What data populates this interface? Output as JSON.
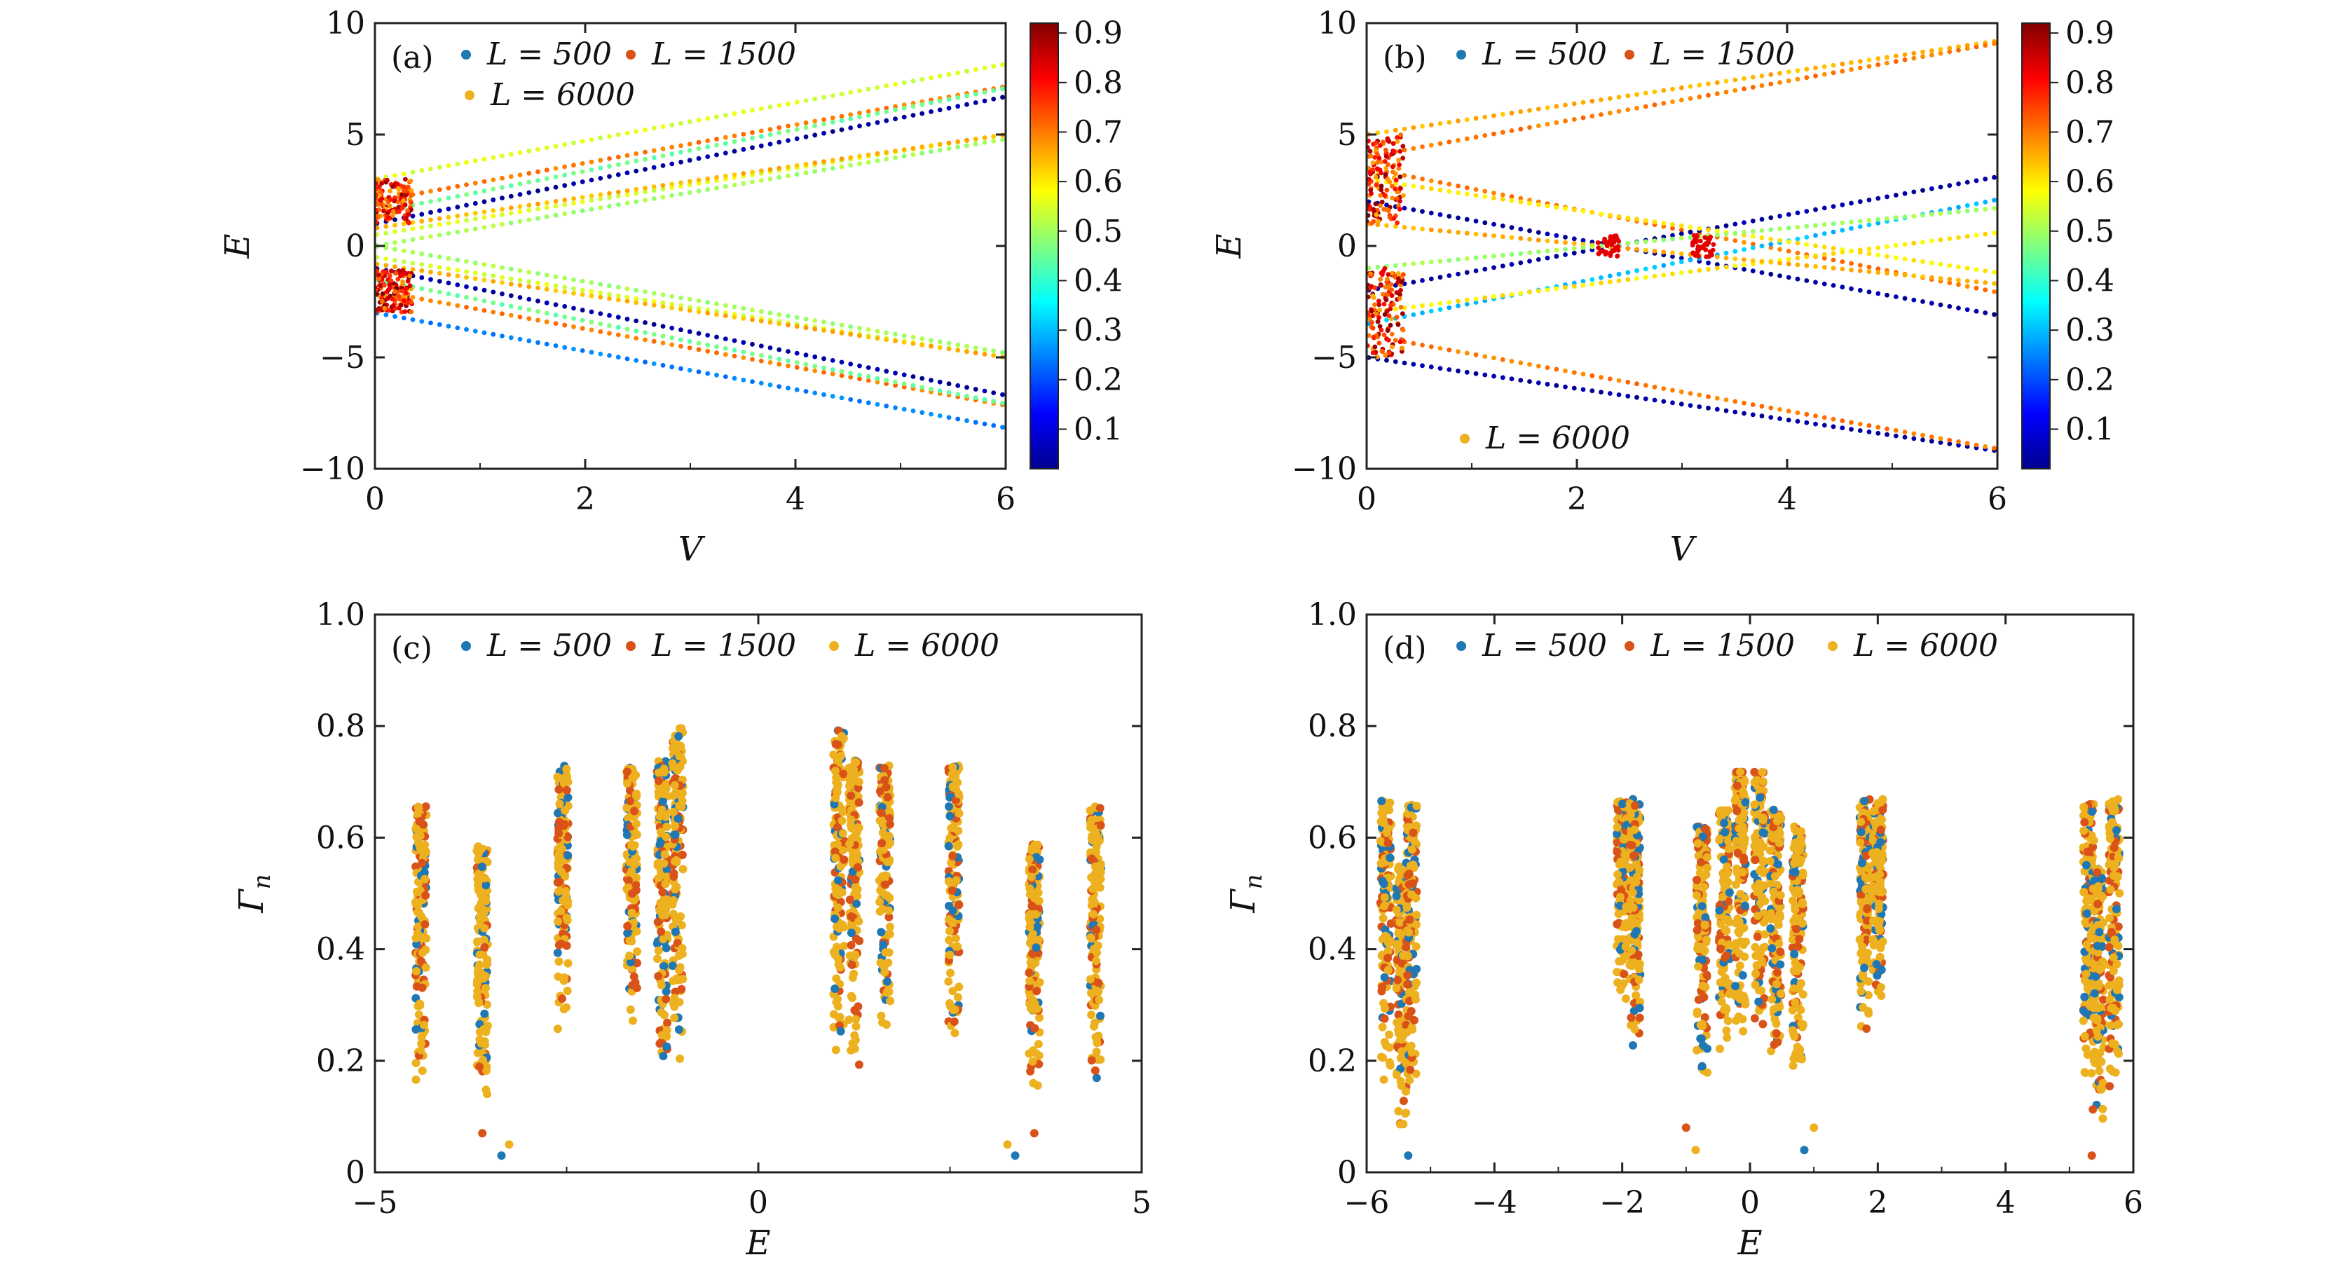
{
  "figure": {
    "colors": {
      "L500": "#1f77b4",
      "L1500": "#d95319",
      "L6000": "#edb120"
    },
    "colormap": "jet",
    "colorbar_ticks": [
      "0.1",
      "0.2",
      "0.3",
      "0.4",
      "0.5",
      "0.6",
      "0.7",
      "0.8",
      "0.9"
    ]
  },
  "chart_data": [
    {
      "id": "a",
      "panel_label": "(a)",
      "type": "scatter",
      "xlabel": "V",
      "ylabel": "E",
      "xlim": [
        0,
        6
      ],
      "ylim": [
        -10,
        10
      ],
      "xticks": [
        "0",
        "2",
        "4",
        "6"
      ],
      "yticks": [
        "10",
        "5",
        "0",
        "−5",
        "−10"
      ],
      "color_scale": {
        "min": 0.02,
        "max": 0.92,
        "ticks": [
          "0.1",
          "0.2",
          "0.3",
          "0.4",
          "0.5",
          "0.6",
          "0.7",
          "0.8",
          "0.9"
        ]
      },
      "legend": [
        {
          "label": "L = 500",
          "color": "#1f77b4"
        },
        {
          "label": "L = 1500",
          "color": "#d95319"
        },
        {
          "label": "L = 6000",
          "color": "#edb120"
        }
      ],
      "bands": [
        {
          "E0": 2.0,
          "slope": 0.86,
          "value": 0.7
        },
        {
          "E0": 1.5,
          "slope": 0.93,
          "value": 0.45
        },
        {
          "E0": 1.0,
          "slope": 0.95,
          "value": 0.05
        },
        {
          "E0": 3.0,
          "slope": 0.86,
          "value": 0.55
        },
        {
          "E0": 0.5,
          "slope": 0.75,
          "value": 0.55
        },
        {
          "E0": 0.8,
          "slope": 0.7,
          "value": 0.65
        },
        {
          "E0": 0.0,
          "slope": 0.8,
          "value": 0.5
        },
        {
          "E0": -2.0,
          "slope": -0.86,
          "value": 0.7
        },
        {
          "E0": -1.5,
          "slope": -0.93,
          "value": 0.45
        },
        {
          "E0": -1.0,
          "slope": -0.95,
          "value": 0.05
        },
        {
          "E0": -3.0,
          "slope": -0.86,
          "value": 0.25
        },
        {
          "E0": -0.5,
          "slope": -0.75,
          "value": 0.55
        },
        {
          "E0": -0.8,
          "slope": -0.7,
          "value": 0.65
        },
        {
          "E0": 0.0,
          "slope": -0.8,
          "value": 0.5
        }
      ]
    },
    {
      "id": "b",
      "panel_label": "(b)",
      "type": "scatter",
      "xlabel": "V",
      "ylabel": "E",
      "xlim": [
        0,
        6
      ],
      "ylim": [
        -10,
        10
      ],
      "xticks": [
        "0",
        "2",
        "4",
        "6"
      ],
      "yticks": [
        "10",
        "5",
        "0",
        "−5",
        "−10"
      ],
      "color_scale": {
        "min": 0.02,
        "max": 0.92,
        "ticks": [
          "0.1",
          "0.2",
          "0.3",
          "0.4",
          "0.5",
          "0.6",
          "0.7",
          "0.8",
          "0.9"
        ]
      },
      "legend": [
        {
          "label": "L = 500",
          "color": "#1f77b4"
        },
        {
          "label": "L = 1500",
          "color": "#d95319"
        },
        {
          "label": "L = 6000",
          "color": "#edb120"
        }
      ],
      "bands": [
        {
          "E0": 5.0,
          "slope": 0.7,
          "value": 0.65
        },
        {
          "E0": 4.0,
          "slope": 0.85,
          "value": 0.7
        },
        {
          "E0": -5.0,
          "slope": -0.7,
          "value": 0.05
        },
        {
          "E0": -4.0,
          "slope": -0.85,
          "value": 0.7
        },
        {
          "E0": 2.0,
          "slope": -0.85,
          "value": 0.05
        },
        {
          "E0": 3.5,
          "slope": -0.93,
          "value": 0.7
        },
        {
          "E0": -2.0,
          "slope": 0.85,
          "value": 0.05
        },
        {
          "E0": -3.5,
          "slope": 0.93,
          "value": 0.3
        },
        {
          "E0": 3.0,
          "slope": -0.7,
          "value": 0.6
        },
        {
          "E0": -3.0,
          "slope": 0.6,
          "value": 0.6
        },
        {
          "E0": 1.0,
          "slope": -0.45,
          "value": 0.65
        },
        {
          "E0": -1.0,
          "slope": 0.45,
          "value": 0.5
        }
      ]
    },
    {
      "id": "c",
      "panel_label": "(c)",
      "type": "scatter",
      "xlabel": "E",
      "ylabel": "Γn",
      "ylabel_main": "Γ",
      "ylabel_sub": "n",
      "xlim": [
        -5,
        5
      ],
      "ylim": [
        0,
        1.0
      ],
      "xticks": [
        "−5",
        "0",
        "5"
      ],
      "xtick_values": [
        -5,
        0,
        5
      ],
      "yticks": [
        "0",
        "0.2",
        "0.4",
        "0.6",
        "0.8",
        "1.0"
      ],
      "legend": [
        {
          "label": "L = 500",
          "color": "#1f77b4"
        },
        {
          "label": "L = 1500",
          "color": "#d95319"
        },
        {
          "label": "L = 6000",
          "color": "#edb120"
        }
      ],
      "clusters": [
        {
          "x": -4.4,
          "lo": 0.15,
          "hi": 0.66
        },
        {
          "x": -3.6,
          "lo": 0.12,
          "hi": 0.59
        },
        {
          "x": -2.55,
          "lo": 0.24,
          "hi": 0.73
        },
        {
          "x": -1.65,
          "lo": 0.25,
          "hi": 0.73
        },
        {
          "x": -1.25,
          "lo": 0.18,
          "hi": 0.74
        },
        {
          "x": -1.05,
          "lo": 0.2,
          "hi": 0.8
        },
        {
          "x": 1.05,
          "lo": 0.2,
          "hi": 0.8
        },
        {
          "x": 1.25,
          "lo": 0.18,
          "hi": 0.74
        },
        {
          "x": 1.65,
          "lo": 0.25,
          "hi": 0.73
        },
        {
          "x": 2.55,
          "lo": 0.24,
          "hi": 0.73
        },
        {
          "x": 3.6,
          "lo": 0.12,
          "hi": 0.59
        },
        {
          "x": 4.4,
          "lo": 0.15,
          "hi": 0.66
        }
      ],
      "outliers": [
        {
          "x": -3.35,
          "y": 0.03
        },
        {
          "x": -3.6,
          "y": 0.07
        },
        {
          "x": -3.25,
          "y": 0.05
        },
        {
          "x": 3.35,
          "y": 0.03
        },
        {
          "x": 3.6,
          "y": 0.07
        },
        {
          "x": 3.25,
          "y": 0.05
        }
      ]
    },
    {
      "id": "d",
      "panel_label": "(d)",
      "type": "scatter",
      "xlabel": "E",
      "ylabel": "Γn",
      "ylabel_main": "Γ",
      "ylabel_sub": "n",
      "xlim": [
        -6,
        6
      ],
      "ylim": [
        0,
        1.0
      ],
      "xticks": [
        "−6",
        "−4",
        "−2",
        "0",
        "2",
        "4",
        "6"
      ],
      "xtick_values": [
        -6,
        -4,
        -2,
        0,
        2,
        4,
        6
      ],
      "yticks": [
        "0",
        "0.2",
        "0.4",
        "0.6",
        "0.8",
        "1.0"
      ],
      "legend": [
        {
          "label": "L = 500",
          "color": "#1f77b4"
        },
        {
          "label": "L = 1500",
          "color": "#d95319"
        },
        {
          "label": "L = 6000",
          "color": "#edb120"
        }
      ],
      "clusters": [
        {
          "x": -5.7,
          "lo": 0.15,
          "hi": 0.67
        },
        {
          "x": -5.45,
          "lo": 0.08,
          "hi": 0.55
        },
        {
          "x": -5.3,
          "lo": 0.15,
          "hi": 0.66
        },
        {
          "x": -2.0,
          "lo": 0.3,
          "hi": 0.67
        },
        {
          "x": -1.8,
          "lo": 0.22,
          "hi": 0.67
        },
        {
          "x": -0.75,
          "lo": 0.15,
          "hi": 0.62
        },
        {
          "x": -0.4,
          "lo": 0.2,
          "hi": 0.65
        },
        {
          "x": -0.15,
          "lo": 0.25,
          "hi": 0.72
        },
        {
          "x": 0.15,
          "lo": 0.25,
          "hi": 0.72
        },
        {
          "x": 0.4,
          "lo": 0.2,
          "hi": 0.65
        },
        {
          "x": 0.75,
          "lo": 0.15,
          "hi": 0.62
        },
        {
          "x": 1.8,
          "lo": 0.22,
          "hi": 0.67
        },
        {
          "x": 2.0,
          "lo": 0.3,
          "hi": 0.67
        },
        {
          "x": 5.3,
          "lo": 0.15,
          "hi": 0.66
        },
        {
          "x": 5.45,
          "lo": 0.08,
          "hi": 0.55
        },
        {
          "x": 5.7,
          "lo": 0.15,
          "hi": 0.67
        }
      ],
      "outliers": [
        {
          "x": -5.35,
          "y": 0.03
        },
        {
          "x": 5.35,
          "y": 0.03
        },
        {
          "x": -0.85,
          "y": 0.04
        },
        {
          "x": 0.85,
          "y": 0.04
        },
        {
          "x": -1.0,
          "y": 0.08
        },
        {
          "x": 1.0,
          "y": 0.08
        }
      ]
    }
  ]
}
